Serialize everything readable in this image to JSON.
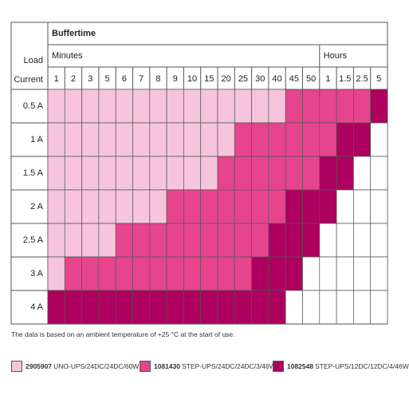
{
  "chart_data": {
    "type": "table",
    "title": "",
    "row_header": [
      "Load",
      "Current"
    ],
    "buffertime_label": "Buffertime",
    "minutes_label": "Minutes",
    "hours_label": "Hours",
    "minutes": [
      "1",
      "2",
      "3",
      "5",
      "6",
      "7",
      "8",
      "9",
      "10",
      "15",
      "20",
      "25",
      "30",
      "40",
      "45",
      "50"
    ],
    "hours": [
      "1",
      "1.5",
      "2.5",
      "5"
    ],
    "rows": [
      "0.5 A",
      "1 A",
      "1.5 A",
      "2 A",
      "2.5 A",
      "3 A",
      "4 A"
    ],
    "cells": [
      [
        1,
        1,
        1,
        1,
        1,
        1,
        1,
        1,
        1,
        1,
        1,
        1,
        1,
        1,
        2,
        2,
        2,
        2,
        2,
        3
      ],
      [
        1,
        1,
        1,
        1,
        1,
        1,
        1,
        1,
        1,
        1,
        1,
        2,
        2,
        2,
        2,
        2,
        2,
        3,
        3,
        0
      ],
      [
        1,
        1,
        1,
        1,
        1,
        1,
        1,
        1,
        1,
        1,
        2,
        2,
        2,
        2,
        2,
        2,
        3,
        3,
        0,
        0
      ],
      [
        1,
        1,
        1,
        1,
        1,
        1,
        1,
        2,
        2,
        2,
        2,
        2,
        2,
        2,
        3,
        3,
        3,
        0,
        0,
        0
      ],
      [
        1,
        1,
        1,
        1,
        2,
        2,
        2,
        2,
        2,
        2,
        2,
        2,
        2,
        3,
        3,
        3,
        0,
        0,
        0,
        0
      ],
      [
        1,
        2,
        2,
        2,
        2,
        2,
        2,
        2,
        2,
        2,
        2,
        2,
        3,
        3,
        3,
        0,
        0,
        0,
        0,
        0
      ],
      [
        3,
        3,
        3,
        3,
        3,
        3,
        3,
        3,
        3,
        3,
        3,
        3,
        3,
        3,
        0,
        0,
        0,
        0,
        0,
        0
      ]
    ],
    "note": "The data is based on an ambient temperature of +25 °C at the start of use.",
    "legend": [
      {
        "code": "2905907",
        "name": "UNO-UPS/24DC/24DC/60W",
        "color": "#f6c5dc"
      },
      {
        "code": "1081430",
        "name": "STEP-UPS/24DC/24DC/3/46W",
        "color": "#e6458e"
      },
      {
        "code": "1082548",
        "name": "STEP-UPS/12DC/12DC/4/46W",
        "color": "#ad005f"
      }
    ],
    "colors": {
      "none": "#ffffff",
      "header_bg": "#ffffff",
      "row_label_bg": "#ffffff",
      "grid": "#555555"
    }
  }
}
